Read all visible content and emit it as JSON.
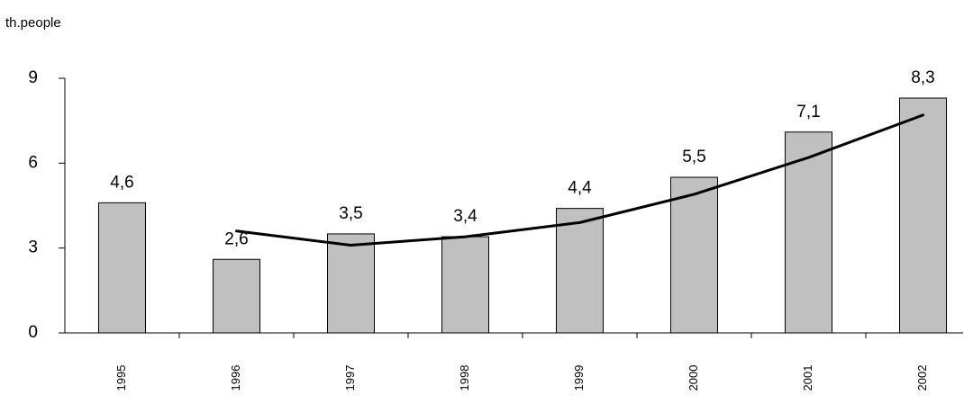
{
  "chart_data": {
    "type": "bar",
    "y_label": "th.people",
    "categories": [
      "1995",
      "1996",
      "1997",
      "1998",
      "1999",
      "2000",
      "2001",
      "2002"
    ],
    "series": [
      {
        "type": "bar",
        "color": "#c0c0c0",
        "values": [
          4.6,
          2.6,
          3.5,
          3.4,
          4.4,
          5.5,
          7.1,
          8.3
        ],
        "value_labels": [
          "4,6",
          "2,6",
          "3,5",
          "3,4",
          "4,4",
          "5,5",
          "7,1",
          "8,3"
        ]
      },
      {
        "type": "line",
        "color": "#000000",
        "values": [
          null,
          3.6,
          3.1,
          3.4,
          3.9,
          4.9,
          6.2,
          7.7
        ]
      }
    ],
    "ylim": [
      0,
      9
    ],
    "yticks": [
      0,
      3,
      6,
      9
    ],
    "grid": false
  }
}
